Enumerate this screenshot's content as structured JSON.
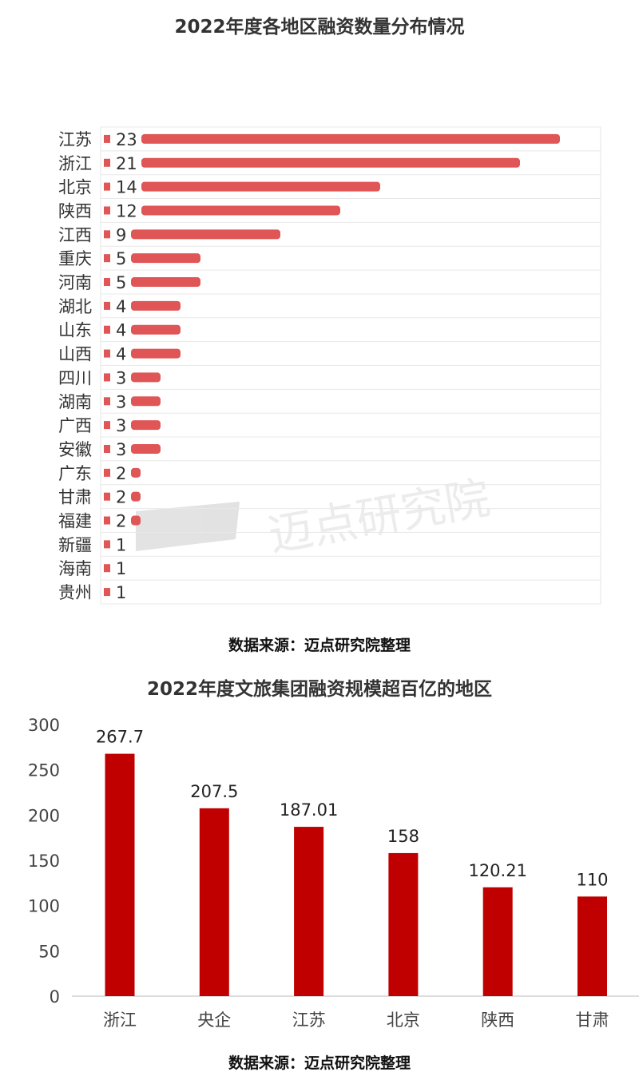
{
  "chart_data": [
    {
      "type": "bar",
      "orientation": "horizontal",
      "title": "2022年度各地区融资数量分布情况",
      "categories": [
        "江苏",
        "浙江",
        "北京",
        "陕西",
        "江西",
        "重庆",
        "河南",
        "湖北",
        "山东",
        "山西",
        "四川",
        "湖南",
        "广西",
        "安徽",
        "广东",
        "甘肃",
        "福建",
        "新疆",
        "海南",
        "贵州"
      ],
      "values": [
        23,
        21,
        14,
        12,
        9,
        5,
        5,
        4,
        4,
        4,
        3,
        3,
        3,
        3,
        2,
        2,
        2,
        1,
        1,
        1
      ],
      "source": "数据来源：迈点研究院整理",
      "bar_color": "#e05555"
    },
    {
      "type": "bar",
      "title": "2022年度文旅集团融资规模超百亿的地区",
      "categories": [
        "浙江",
        "央企",
        "江苏",
        "北京",
        "陕西",
        "甘肃"
      ],
      "values": [
        267.7,
        207.5,
        187.01,
        158,
        120.21,
        110
      ],
      "ylim": [
        0,
        300
      ],
      "yticks": [
        0,
        50,
        100,
        150,
        200,
        250,
        300
      ],
      "source": "数据来源：迈点研究院整理",
      "bar_color": "#c00000"
    }
  ],
  "watermark": "迈点研究院"
}
